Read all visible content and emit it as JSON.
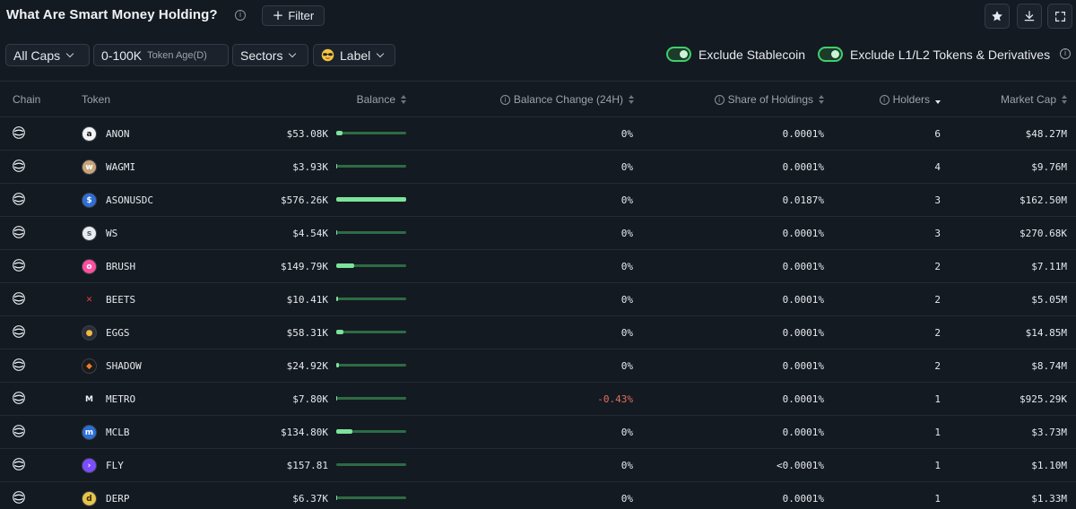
{
  "header": {
    "title": "What Are Smart Money Holding?",
    "info_glyph": "i",
    "filter_plus": "+",
    "filter_label": "Filter",
    "actions": [
      "star-icon",
      "download-icon",
      "expand-icon"
    ]
  },
  "toolbar": {
    "caps_label": "All Caps",
    "token_age_value": "0-100K",
    "token_age_label": "Token Age(D)",
    "sectors_label": "Sectors",
    "label_label": "Label",
    "exclude_stablecoin": {
      "label": "Exclude Stablecoin",
      "on": true
    },
    "exclude_l1l2": {
      "label": "Exclude L1/L2 Tokens & Derivatives",
      "on": true
    },
    "more_glyph": "i"
  },
  "colors": {
    "background": "#141a21",
    "accent_green": "#3ecf6a",
    "bar_fill": "#7de39b",
    "bar_track": "#2e6b44",
    "negative": "#e0705f"
  },
  "table": {
    "columns": {
      "chain": "Chain",
      "token": "Token",
      "balance": "Balance",
      "balance_change": "Balance Change (24H)",
      "share": "Share of Holdings",
      "holders": "Holders",
      "market_cap": "Market Cap"
    },
    "sort": {
      "column": "holders",
      "direction": "desc"
    },
    "rows": [
      {
        "token": "ANON",
        "balance": "$53.08K",
        "bar_fraction": 0.09,
        "change": "0%",
        "share": "0.0001%",
        "holders": "6",
        "market_cap": "$48.27M",
        "icon": "anon-icon",
        "icon_bg": "#f1f3f6",
        "icon_fg": "#111111",
        "icon_glyph": "a"
      },
      {
        "token": "WAGMI",
        "balance": "$3.93K",
        "bar_fraction": 0.01,
        "change": "0%",
        "share": "0.0001%",
        "holders": "4",
        "market_cap": "$9.76M",
        "icon": "wagmi-icon",
        "icon_bg": "#c7a57a",
        "icon_fg": "#ffffff",
        "icon_glyph": "w"
      },
      {
        "token": "ASONUSDC",
        "balance": "$576.26K",
        "bar_fraction": 1.0,
        "change": "0%",
        "share": "0.0187%",
        "holders": "3",
        "market_cap": "$162.50M",
        "icon": "asonusdc-icon",
        "icon_bg": "#2f6fd6",
        "icon_fg": "#ffffff",
        "icon_glyph": "$"
      },
      {
        "token": "WS",
        "balance": "$4.54K",
        "bar_fraction": 0.01,
        "change": "0%",
        "share": "0.0001%",
        "holders": "3",
        "market_cap": "$270.68K",
        "icon": "ws-icon",
        "icon_bg": "#e8ecf1",
        "icon_fg": "#4b5563",
        "icon_glyph": "s"
      },
      {
        "token": "BRUSH",
        "balance": "$149.79K",
        "bar_fraction": 0.26,
        "change": "0%",
        "share": "0.0001%",
        "holders": "2",
        "market_cap": "$7.11M",
        "icon": "brush-icon",
        "icon_bg": "#ff4fa0",
        "icon_fg": "#ffffff",
        "icon_glyph": "o"
      },
      {
        "token": "BEETS",
        "balance": "$10.41K",
        "bar_fraction": 0.02,
        "change": "0%",
        "share": "0.0001%",
        "holders": "2",
        "market_cap": "$5.05M",
        "icon": "beets-icon",
        "icon_bg": "transparent",
        "icon_fg": "#e8413a",
        "icon_glyph": "✕"
      },
      {
        "token": "EGGS",
        "balance": "$58.31K",
        "bar_fraction": 0.1,
        "change": "0%",
        "share": "0.0001%",
        "holders": "2",
        "market_cap": "$14.85M",
        "icon": "eggs-icon",
        "icon_bg": "#2a2f38",
        "icon_fg": "#f5b942",
        "icon_glyph": "●"
      },
      {
        "token": "SHADOW",
        "balance": "$24.92K",
        "bar_fraction": 0.04,
        "change": "0%",
        "share": "0.0001%",
        "holders": "2",
        "market_cap": "$8.74M",
        "icon": "shadow-icon",
        "icon_bg": "#1a1a1a",
        "icon_fg": "#f07a2a",
        "icon_glyph": "◆"
      },
      {
        "token": "METRO",
        "balance": "$7.80K",
        "bar_fraction": 0.01,
        "change": "-0.43%",
        "share": "0.0001%",
        "holders": "1",
        "market_cap": "$925.29K",
        "icon": "metro-icon",
        "icon_bg": "transparent",
        "icon_fg": "#f1f3f6",
        "icon_glyph": "M"
      },
      {
        "token": "MCLB",
        "balance": "$134.80K",
        "bar_fraction": 0.23,
        "change": "0%",
        "share": "0.0001%",
        "holders": "1",
        "market_cap": "$3.73M",
        "icon": "mclb-icon",
        "icon_bg": "#2b6fd8",
        "icon_fg": "#ffffff",
        "icon_glyph": "m"
      },
      {
        "token": "FLY",
        "balance": "$157.81",
        "bar_fraction": 0.0,
        "change": "0%",
        "share": "<0.0001%",
        "holders": "1",
        "market_cap": "$1.10M",
        "icon": "fly-icon",
        "icon_bg": "#7c4dff",
        "icon_fg": "#ffffff",
        "icon_glyph": "›"
      },
      {
        "token": "DERP",
        "balance": "$6.37K",
        "bar_fraction": 0.01,
        "change": "0%",
        "share": "0.0001%",
        "holders": "1",
        "market_cap": "$1.33M",
        "icon": "derp-icon",
        "icon_bg": "#e8c547",
        "icon_fg": "#3a2a00",
        "icon_glyph": "d"
      }
    ]
  }
}
